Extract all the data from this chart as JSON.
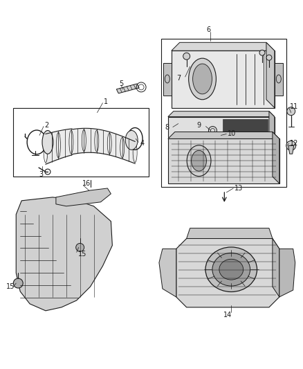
{
  "bg_color": "#ffffff",
  "line_color": "#1a1a1a",
  "fig_width": 4.38,
  "fig_height": 5.33,
  "dpi": 100
}
